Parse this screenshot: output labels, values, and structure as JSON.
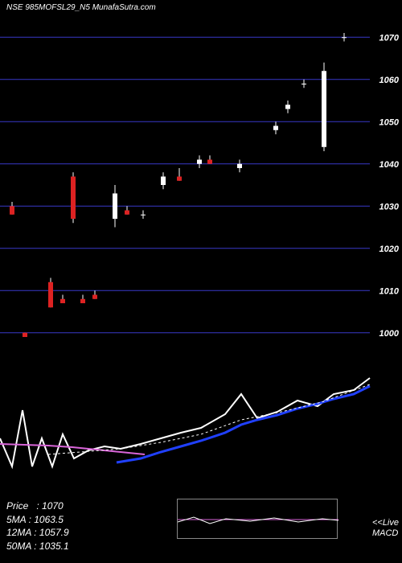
{
  "header": {
    "text": "NSE 985MOFSL29_N5 MunafaSutra.com",
    "color": "#ffffff"
  },
  "price_chart": {
    "type": "candlestick",
    "background_color": "#000000",
    "grid_color": "#3838c8",
    "ylim": [
      995,
      1075
    ],
    "ytick_step": 10,
    "yticks": [
      1000,
      1010,
      1020,
      1030,
      1040,
      1050,
      1060,
      1070
    ],
    "label_fontsize": 11,
    "label_color": "#ffffff",
    "candle_colors": {
      "up": "#ffffff",
      "down": "#dd2222",
      "wick": "#ffffff"
    },
    "candles": [
      {
        "x": 12,
        "open": 1030,
        "high": 1031,
        "low": 1028,
        "close": 1028
      },
      {
        "x": 28,
        "open": 1000,
        "high": 1000,
        "low": 999,
        "close": 999
      },
      {
        "x": 60,
        "open": 1012,
        "high": 1013,
        "low": 1006,
        "close": 1006
      },
      {
        "x": 75,
        "open": 1008,
        "high": 1009,
        "low": 1007,
        "close": 1007
      },
      {
        "x": 88,
        "open": 1037,
        "high": 1038,
        "low": 1026,
        "close": 1027
      },
      {
        "x": 100,
        "open": 1008,
        "high": 1009,
        "low": 1007,
        "close": 1007
      },
      {
        "x": 115,
        "open": 1009,
        "high": 1010,
        "low": 1008,
        "close": 1008
      },
      {
        "x": 140,
        "open": 1027,
        "high": 1035,
        "low": 1025,
        "close": 1033
      },
      {
        "x": 155,
        "open": 1029,
        "high": 1030,
        "low": 1028,
        "close": 1028
      },
      {
        "x": 175,
        "open": 1028,
        "high": 1029,
        "low": 1027,
        "close": 1028
      },
      {
        "x": 200,
        "open": 1035,
        "high": 1038,
        "low": 1034,
        "close": 1037
      },
      {
        "x": 220,
        "open": 1037,
        "high": 1039,
        "low": 1036,
        "close": 1036
      },
      {
        "x": 245,
        "open": 1040,
        "high": 1042,
        "low": 1039,
        "close": 1041
      },
      {
        "x": 258,
        "open": 1041,
        "high": 1042,
        "low": 1040,
        "close": 1040
      },
      {
        "x": 295,
        "open": 1039,
        "high": 1041,
        "low": 1038,
        "close": 1040
      },
      {
        "x": 340,
        "open": 1048,
        "high": 1050,
        "low": 1047,
        "close": 1049
      },
      {
        "x": 355,
        "open": 1053,
        "high": 1055,
        "low": 1052,
        "close": 1054
      },
      {
        "x": 375,
        "open": 1059,
        "high": 1060,
        "low": 1058,
        "close": 1059
      },
      {
        "x": 400,
        "open": 1044,
        "high": 1064,
        "low": 1043,
        "close": 1062
      },
      {
        "x": 425,
        "open": 1070,
        "high": 1071,
        "low": 1069,
        "close": 1070
      }
    ]
  },
  "indicator_chart": {
    "type": "line",
    "background_color": "#000000",
    "lines": [
      {
        "name": "white",
        "color": "#ffffff",
        "width": 2,
        "points": [
          [
            0,
            95
          ],
          [
            15,
            130
          ],
          [
            28,
            60
          ],
          [
            40,
            130
          ],
          [
            52,
            95
          ],
          [
            65,
            130
          ],
          [
            78,
            90
          ],
          [
            92,
            120
          ],
          [
            110,
            110
          ],
          [
            130,
            105
          ],
          [
            150,
            108
          ],
          [
            175,
            102
          ],
          [
            200,
            95
          ],
          [
            225,
            88
          ],
          [
            250,
            82
          ],
          [
            280,
            65
          ],
          [
            300,
            40
          ],
          [
            320,
            70
          ],
          [
            345,
            62
          ],
          [
            370,
            48
          ],
          [
            395,
            55
          ],
          [
            415,
            40
          ],
          [
            440,
            35
          ],
          [
            460,
            20
          ]
        ]
      },
      {
        "name": "blue",
        "color": "#2040ff",
        "width": 3,
        "points": [
          [
            145,
            125
          ],
          [
            175,
            120
          ],
          [
            200,
            112
          ],
          [
            225,
            105
          ],
          [
            250,
            98
          ],
          [
            280,
            88
          ],
          [
            300,
            78
          ],
          [
            320,
            72
          ],
          [
            345,
            66
          ],
          [
            370,
            58
          ],
          [
            395,
            52
          ],
          [
            415,
            46
          ],
          [
            440,
            40
          ],
          [
            460,
            30
          ]
        ]
      },
      {
        "name": "pink",
        "color": "#d865d8",
        "width": 2,
        "points": [
          [
            0,
            102
          ],
          [
            30,
            103
          ],
          [
            60,
            104
          ],
          [
            90,
            106
          ],
          [
            120,
            109
          ],
          [
            150,
            112
          ],
          [
            180,
            115
          ]
        ]
      },
      {
        "name": "dotted",
        "color": "#ffffff",
        "width": 1,
        "dash": "3,3",
        "points": [
          [
            60,
            115
          ],
          [
            100,
            112
          ],
          [
            150,
            108
          ],
          [
            200,
            100
          ],
          [
            250,
            90
          ],
          [
            300,
            72
          ],
          [
            350,
            62
          ],
          [
            400,
            50
          ],
          [
            460,
            28
          ]
        ]
      }
    ]
  },
  "macd_inset": {
    "border_color": "#888888",
    "lines": [
      {
        "color": "#d865d8",
        "width": 1,
        "points": [
          [
            0,
            25
          ],
          [
            200,
            25
          ]
        ]
      },
      {
        "color": "#ffffff",
        "width": 1,
        "points": [
          [
            0,
            28
          ],
          [
            20,
            22
          ],
          [
            40,
            30
          ],
          [
            60,
            24
          ],
          [
            90,
            27
          ],
          [
            120,
            23
          ],
          [
            150,
            28
          ],
          [
            180,
            24
          ],
          [
            200,
            26
          ]
        ]
      }
    ]
  },
  "info": {
    "price_label": "Price",
    "price_value": "1070",
    "ma5_label": "5MA",
    "ma5_value": "1063.5",
    "ma12_label": "12MA",
    "ma12_value": "1057.9",
    "ma50_label": "50MA",
    "ma50_value": "1035.1"
  },
  "live_macd": {
    "line1": "<<Live",
    "line2": "MACD"
  }
}
